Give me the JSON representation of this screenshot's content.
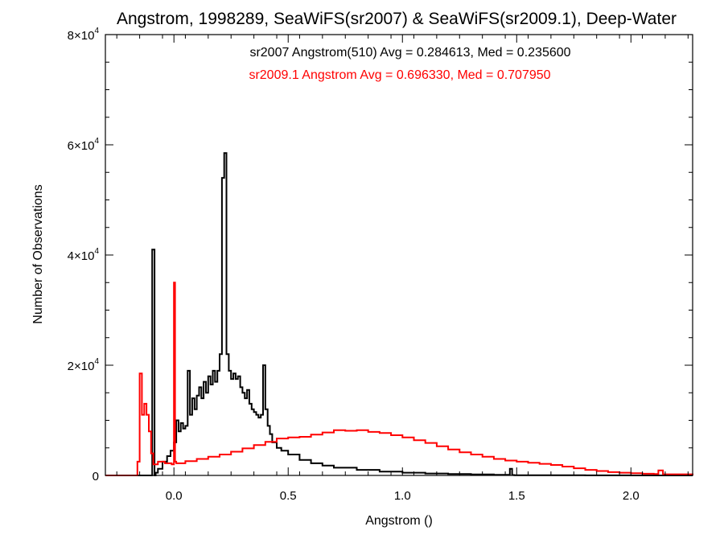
{
  "chart_data": {
    "type": "line",
    "title": "Angstrom, 1998289, SeaWiFS(sr2007) & SeaWiFS(sr2009.1), Deep-Water",
    "xlabel": "Angstrom ()",
    "ylabel": "Number of Observations",
    "xlim": [
      -0.3,
      2.27
    ],
    "ylim": [
      0,
      80000
    ],
    "x_ticks": [
      {
        "value": 0.0,
        "label": "0.0"
      },
      {
        "value": 0.5,
        "label": "0.5"
      },
      {
        "value": 1.0,
        "label": "1.0"
      },
      {
        "value": 1.5,
        "label": "1.5"
      },
      {
        "value": 2.0,
        "label": "2.0"
      }
    ],
    "y_ticks": [
      {
        "value": 0,
        "label": "0"
      },
      {
        "value": 20000,
        "mant": "2",
        "exp": "4"
      },
      {
        "value": 40000,
        "mant": "4",
        "exp": "4"
      },
      {
        "value": 60000,
        "mant": "6",
        "exp": "4"
      },
      {
        "value": 80000,
        "mant": "8",
        "exp": "4"
      }
    ],
    "grid": false,
    "annotations": [
      {
        "text": "sr2007 Angstrom(510) Avg = 0.284613, Med = 0.235600",
        "color": "#000000"
      },
      {
        "text": "sr2009.1 Angstrom Avg = 0.696330, Med = 0.707950",
        "color": "#ff0000"
      }
    ],
    "series": [
      {
        "color": "#000000",
        "step": true,
        "x": [
          -0.3,
          -0.095,
          -0.085,
          -0.08,
          -0.07,
          -0.05,
          -0.03,
          -0.015,
          0.0,
          0.01,
          0.02,
          0.03,
          0.04,
          0.05,
          0.06,
          0.07,
          0.08,
          0.09,
          0.1,
          0.11,
          0.12,
          0.13,
          0.14,
          0.15,
          0.16,
          0.17,
          0.18,
          0.19,
          0.2,
          0.21,
          0.22,
          0.23,
          0.24,
          0.25,
          0.26,
          0.27,
          0.28,
          0.29,
          0.3,
          0.31,
          0.32,
          0.33,
          0.34,
          0.35,
          0.36,
          0.37,
          0.38,
          0.39,
          0.4,
          0.41,
          0.42,
          0.43,
          0.45,
          0.47,
          0.5,
          0.55,
          0.6,
          0.65,
          0.7,
          0.8,
          0.9,
          1.0,
          1.1,
          1.2,
          1.3,
          1.4,
          1.47,
          1.48,
          1.49,
          1.5,
          1.6,
          1.8,
          2.0,
          2.27
        ],
        "values": [
          0,
          41000,
          0,
          500,
          1200,
          2500,
          3500,
          4500,
          6000,
          10000,
          8000,
          9500,
          8500,
          9000,
          19000,
          11000,
          14000,
          12000,
          14500,
          16000,
          14000,
          17000,
          15000,
          18000,
          16500,
          19000,
          17000,
          19000,
          22000,
          54000,
          58500,
          22000,
          19000,
          17500,
          18500,
          17500,
          18000,
          16000,
          15000,
          14000,
          15500,
          13000,
          12000,
          11500,
          11000,
          10500,
          11000,
          20000,
          12000,
          9000,
          7500,
          6000,
          5000,
          4500,
          3800,
          2800,
          2200,
          1800,
          1400,
          1000,
          700,
          500,
          350,
          250,
          180,
          120,
          1200,
          80,
          50,
          40,
          25,
          10,
          5,
          0
        ]
      },
      {
        "color": "#ff0000",
        "step": true,
        "x": [
          -0.3,
          -0.16,
          -0.15,
          -0.14,
          -0.13,
          -0.12,
          -0.11,
          -0.1,
          -0.09,
          -0.07,
          -0.04,
          -0.01,
          0.0,
          0.005,
          0.01,
          0.05,
          0.1,
          0.15,
          0.2,
          0.25,
          0.3,
          0.35,
          0.4,
          0.45,
          0.5,
          0.55,
          0.6,
          0.65,
          0.7,
          0.75,
          0.8,
          0.85,
          0.9,
          0.95,
          1.0,
          1.05,
          1.1,
          1.15,
          1.2,
          1.25,
          1.3,
          1.35,
          1.4,
          1.45,
          1.5,
          1.55,
          1.6,
          1.65,
          1.7,
          1.75,
          1.8,
          1.85,
          1.9,
          1.95,
          2.0,
          2.05,
          2.1,
          2.12,
          2.14,
          2.27
        ],
        "values": [
          0,
          2500,
          18500,
          11000,
          13000,
          11000,
          8000,
          4000,
          2000,
          2500,
          2200,
          2000,
          35000,
          2500,
          2200,
          2600,
          3000,
          3400,
          3800,
          4300,
          4900,
          5500,
          6100,
          6700,
          6900,
          7000,
          7400,
          7800,
          8200,
          8100,
          8200,
          7900,
          7700,
          7300,
          6900,
          6400,
          5900,
          5300,
          4700,
          4200,
          3800,
          3400,
          3000,
          2700,
          2500,
          2300,
          2100,
          1900,
          1600,
          1300,
          1000,
          800,
          600,
          500,
          400,
          300,
          250,
          900,
          200,
          0
        ]
      }
    ]
  }
}
